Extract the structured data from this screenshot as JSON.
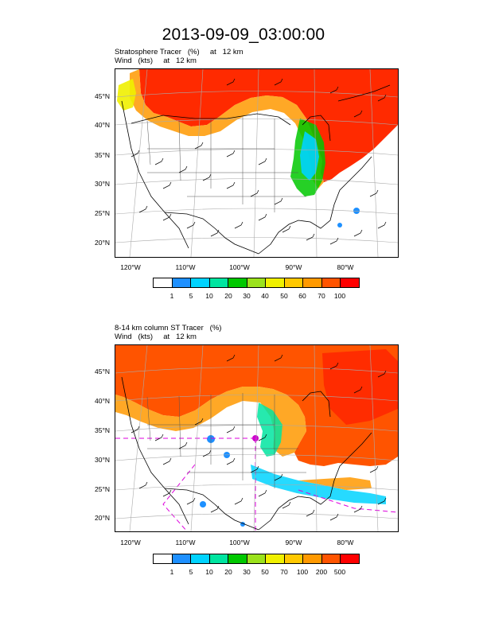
{
  "title": "2013-09-09_03:00:00",
  "panels": [
    {
      "subtitle_line1": "Stratosphere Tracer   (%)     at   12 km",
      "subtitle_line2": "Wind   (kts)     at   12 km",
      "lat_labels": [
        "45°N",
        "40°N",
        "35°N",
        "30°N",
        "25°N",
        "20°N"
      ],
      "lon_labels": [
        "120°W",
        "110°W",
        "100°W",
        "90°W",
        "80°W"
      ],
      "colorbar": {
        "colors": [
          "#ffffff",
          "#1e90ff",
          "#00d3ff",
          "#00e5a0",
          "#00c800",
          "#9be21c",
          "#f0f000",
          "#ffc800",
          "#ff9900",
          "#ff5400",
          "#ff0000"
        ],
        "labels": [
          "1",
          "5",
          "10",
          "20",
          "30",
          "40",
          "50",
          "60",
          "70",
          "100"
        ]
      }
    },
    {
      "subtitle_line1": "8-14 km column ST Tracer   (%)",
      "subtitle_line2": "Wind   (kts)     at   12 km",
      "lat_labels": [
        "45°N",
        "40°N",
        "35°N",
        "30°N",
        "25°N",
        "20°N"
      ],
      "lon_labels": [
        "120°W",
        "110°W",
        "100°W",
        "90°W",
        "80°W"
      ],
      "colorbar": {
        "colors": [
          "#ffffff",
          "#1e90ff",
          "#00d3ff",
          "#00e5a0",
          "#00c800",
          "#9be21c",
          "#f0f000",
          "#ffc800",
          "#ff9900",
          "#ff5400",
          "#ff0000"
        ],
        "labels": [
          "1",
          "5",
          "10",
          "20",
          "30",
          "50",
          "70",
          "100",
          "200",
          "500"
        ]
      }
    }
  ]
}
